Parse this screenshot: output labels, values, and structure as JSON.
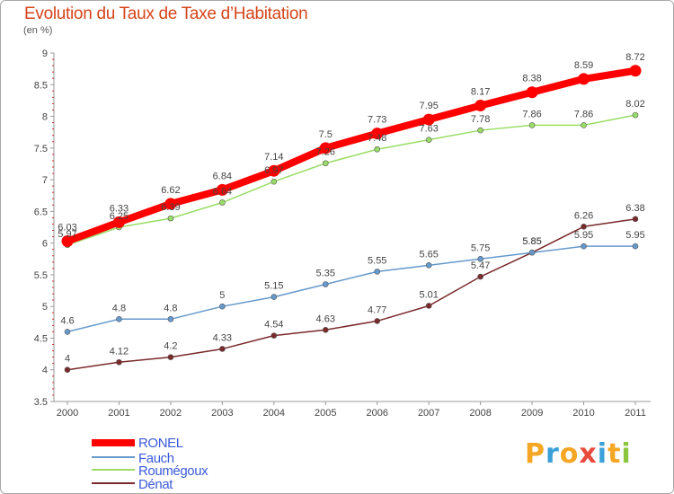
{
  "title": "Evolution du Taux de Taxe d’Habitation",
  "unit": "(en %)",
  "logo": {
    "text": "Proxiti",
    "colors": [
      "#f5a623",
      "#3aa0d8",
      "#f5a623",
      "#e84b3c",
      "#3aa0d8",
      "#f5a623",
      "#8cc63f"
    ]
  },
  "chart_data": {
    "type": "line",
    "x": [
      "2000",
      "2001",
      "2002",
      "2003",
      "2004",
      "2005",
      "2006",
      "2007",
      "2008",
      "2009",
      "2010",
      "2011"
    ],
    "ylim": [
      3.5,
      9
    ],
    "yticks": [
      "3.5",
      "4",
      "4.5",
      "5",
      "5.5",
      "6",
      "6.5",
      "7",
      "7.5",
      "8",
      "8.5",
      "9"
    ],
    "grid": false,
    "legend_position": "bottom-left",
    "series": [
      {
        "name": "RONEL",
        "color": "#ff0000",
        "values": [
          6.03,
          6.33,
          6.62,
          6.84,
          7.14,
          7.5,
          7.73,
          7.95,
          8.17,
          8.38,
          8.59,
          8.72
        ],
        "labels": [
          "6.03",
          "6.33",
          "6.62",
          "6.84",
          "7.14",
          "7.5",
          "7.73",
          "7.95",
          "8.17",
          "8.38",
          "8.59",
          "8.72"
        ]
      },
      {
        "name": "Fauch",
        "color": "#6699cc",
        "values": [
          4.6,
          4.8,
          4.8,
          5,
          5.15,
          5.35,
          5.55,
          5.65,
          5.75,
          5.85,
          5.95,
          5.95
        ],
        "labels": [
          "4.6",
          "4.8",
          "4.8",
          "5",
          "5.15",
          "5.35",
          "5.55",
          "5.65",
          "5.75",
          "5.85",
          "5.95",
          "5.95"
        ]
      },
      {
        "name": "Roumégoux",
        "color": "#99dd66",
        "values": [
          5.97,
          6.25,
          6.39,
          6.64,
          6.97,
          7.26,
          7.48,
          7.63,
          7.78,
          7.86,
          7.86,
          8.02
        ],
        "labels": [
          "5.97",
          "6.25",
          "6.39",
          "6.64",
          "6.97",
          "7.26",
          "7.48",
          "7.63",
          "7.78",
          "7.86",
          "7.86",
          "8.02"
        ]
      },
      {
        "name": "Dénat",
        "color": "#7a2a2a",
        "values": [
          4,
          4.12,
          4.2,
          4.33,
          4.54,
          4.63,
          4.77,
          5.01,
          5.47,
          5.85,
          6.26,
          6.38
        ],
        "labels": [
          "4",
          "4.12",
          "4.2",
          "4.33",
          "4.54",
          "4.63",
          "4.77",
          "5.01",
          "5.47",
          "5.85",
          "6.26",
          "6.38"
        ]
      }
    ]
  }
}
